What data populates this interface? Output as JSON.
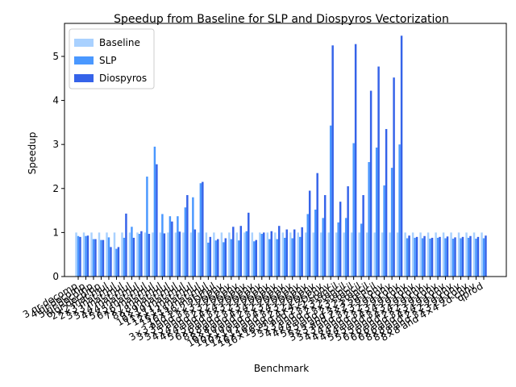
{
  "chart_data": {
    "type": "bar",
    "title": "Speedup from Baseline for SLP and Diospyros Vectorization",
    "xlabel": "Benchmark",
    "ylabel": "Speedup",
    "ylim": [
      0,
      5.75
    ],
    "yticks": [
      0,
      1,
      2,
      3,
      4,
      5
    ],
    "grid": false,
    "legend_position": "top-left",
    "colors": {
      "Baseline": "#a9d1ff",
      "SLP": "#4a98ff",
      "Diospyros": "#3563e9"
    },
    "categories": [
      "3 qr-decomp",
      "4 qr-decomp",
      "5 qr-decomp",
      "6 qr-decomp",
      "2×2 mat-mul",
      "2×3 mat-mul",
      "3×3 mat-mul",
      "3×4 mat-mul",
      "4×4 mat-mul",
      "5×5 mat-mul",
      "6×6 mat-mul",
      "7×7 mat-mul",
      "8×8 mat-mul",
      "9×9 mat-mul",
      "10×10 mat-mul",
      "11×11 mat-mul",
      "12×12 mat-mul",
      "15×15 mat-mul",
      "16×16 mat-mul",
      "3×3 and 2×2 2DConv",
      "3×3 and 3×3 2DConv",
      "3×5 and 3×3 2DConv",
      "4×4 and 2×2 2DConv",
      "4×4 and 4×4 2DConv",
      "5×5 and 3×3 2DConv",
      "6×6 and 2×2 2DConv",
      "8×8 and 3×3 2DConv",
      "8×8 and 4×4 2DConv",
      "10×10 and 2×2 2DConv",
      "10×10 and 3×3 2DConv",
      "10×10 and 4×4 2DConv",
      "12×12 and 3×3 2DConv",
      "16×16 and 2×2 2DConv",
      "16×16 and 4×4 2DConv",
      "3×3 and 2×2 stencil",
      "3×3 and 3×3 stencil",
      "4×4 and 2×2 stencil",
      "4×4 and 3×3 stencil",
      "5×5 and 2×2 stencil",
      "5×5 and 3×3 stencil",
      "3×3 and 2×2 2d-conv",
      "3×3 and 3×3 2d-conv",
      "4×4 and 2×2 2d-conv",
      "4×4 and 3×3 2d-conv",
      "4×4 and 4×4 2d-conv",
      "5×5 and 3×3 2d-conv",
      "5×5 and 4×4 2d-conv",
      "6×6 and 2×2 2d-conv",
      "6×6 and 3×3 2d-conv",
      "6×6 and 4×4 2d-conv",
      "8×8 and 2×2 2d-conv",
      "8×8 and 3×3 2d-conv",
      "8×8 and 4×4 2d-conv",
      "qprod"
    ],
    "series": [
      {
        "name": "Baseline",
        "values": [
          1,
          1,
          1,
          1,
          1,
          1,
          1,
          1,
          1,
          1,
          1,
          1,
          1,
          1,
          1,
          1,
          1,
          1,
          1,
          1,
          1,
          1,
          1,
          1,
          1,
          1,
          1,
          1,
          1,
          1,
          1,
          1,
          1,
          1,
          1,
          1,
          1,
          1,
          1,
          1,
          1,
          1,
          1,
          1,
          1,
          1,
          1,
          1,
          1,
          1,
          1,
          1,
          1,
          1
        ]
      },
      {
        "name": "SLP",
        "values": [
          0.92,
          0.92,
          0.85,
          0.83,
          0.89,
          0.63,
          0.88,
          1.13,
          0.97,
          2.27,
          2.95,
          1.42,
          1.37,
          1.37,
          1.57,
          1.8,
          2.12,
          0.77,
          0.82,
          0.78,
          0.85,
          0.82,
          1.03,
          0.8,
          0.97,
          0.85,
          0.85,
          0.88,
          0.87,
          0.9,
          1.42,
          1.52,
          1.33,
          3.43,
          1.23,
          1.33,
          3.03,
          1.2,
          2.6,
          2.93,
          2.07,
          2.47,
          3.0,
          0.87,
          0.88,
          0.87,
          0.86,
          0.88,
          0.87,
          0.86,
          0.87,
          0.88,
          0.86,
          0.87
        ]
      },
      {
        "name": "Diospyros",
        "values": [
          0.9,
          0.93,
          0.85,
          0.83,
          0.67,
          0.67,
          1.43,
          0.88,
          1.03,
          0.97,
          2.55,
          0.98,
          1.25,
          1.02,
          1.85,
          1.07,
          2.15,
          0.9,
          0.85,
          0.87,
          1.13,
          1.15,
          1.45,
          0.83,
          1.0,
          1.03,
          1.15,
          1.07,
          1.07,
          1.12,
          1.95,
          2.35,
          1.85,
          5.25,
          1.7,
          2.05,
          5.28,
          1.85,
          4.22,
          4.77,
          3.35,
          4.52,
          5.47,
          0.93,
          0.9,
          0.92,
          0.88,
          0.9,
          0.91,
          0.89,
          0.9,
          0.92,
          0.9,
          0.93
        ]
      }
    ]
  }
}
